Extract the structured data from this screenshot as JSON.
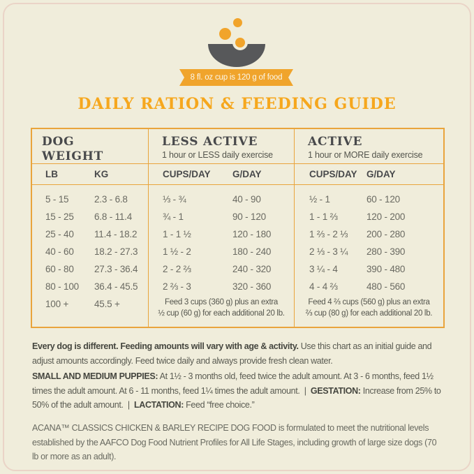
{
  "header": {
    "badge_text": "8 fl. oz cup is 120 g of food",
    "title": "DAILY RATION & FEEDING GUIDE"
  },
  "theme": {
    "background": "#f0eddb",
    "accent_orange": "#f6a71d",
    "table_border": "#e9a43c",
    "dark_text": "#48494b"
  },
  "table": {
    "weight": {
      "header_line1": "DOG",
      "header_line2": "WEIGHT",
      "col1": "LB",
      "col2": "KG",
      "rows": [
        {
          "lb": "5 - 15",
          "kg": "2.3 - 6.8"
        },
        {
          "lb": "15 - 25",
          "kg": "6.8 - 11.4"
        },
        {
          "lb": "25 - 40",
          "kg": "11.4 - 18.2"
        },
        {
          "lb": "40 - 60",
          "kg": "18.2 - 27.3"
        },
        {
          "lb": "60 - 80",
          "kg": "27.3 - 36.4"
        },
        {
          "lb": "80 - 100",
          "kg": "36.4 - 45.5"
        },
        {
          "lb": "100 +",
          "kg": "45.5 +"
        }
      ]
    },
    "less_active": {
      "header": "LESS ACTIVE",
      "subtitle": "1 hour or LESS daily exercise",
      "col1": "CUPS/DAY",
      "col2": "G/DAY",
      "rows": [
        {
          "cups": "⅓ - ¾",
          "g": "40 - 90"
        },
        {
          "cups": "¾ - 1",
          "g": "90 - 120"
        },
        {
          "cups": "1 - 1 ½",
          "g": "120 - 180"
        },
        {
          "cups": "1 ½ - 2",
          "g": "180 - 240"
        },
        {
          "cups": "2 - 2 ⅔",
          "g": "240 - 320"
        },
        {
          "cups": "2 ⅔ - 3",
          "g": "320 - 360"
        }
      ],
      "note_line1": "Feed 3 cups (360 g) plus an extra",
      "note_line2": "½ cup (60 g) for each additional 20 lb."
    },
    "active": {
      "header": "ACTIVE",
      "subtitle": "1 hour or MORE daily exercise",
      "col1": "CUPS/DAY",
      "col2": "G/DAY",
      "rows": [
        {
          "cups": "½ - 1",
          "g": "60 - 120"
        },
        {
          "cups": "1 - 1 ⅔",
          "g": "120 - 200"
        },
        {
          "cups": "1 ⅔ - 2 ⅓",
          "g": "200 - 280"
        },
        {
          "cups": "2 ⅓ - 3 ¼",
          "g": "280 - 390"
        },
        {
          "cups": "3 ¼ - 4",
          "g": "390 - 480"
        },
        {
          "cups": "4 - 4 ⅔",
          "g": "480 - 560"
        }
      ],
      "note_line1": "Feed 4 ⅔ cups (560 g) plus an extra",
      "note_line2": "⅔ cup (80 g) for each additional 20 lb."
    }
  },
  "footnotes": {
    "general_bold": "Every dog is different. Feeding amounts will vary with age & activity.",
    "general_rest": " Use this chart as an initial guide and adjust amounts accordingly. Feed twice daily and always provide fresh clean water.",
    "puppies_label": "SMALL AND MEDIUM PUPPIES:",
    "puppies_text": " At 1½ - 3 months old, feed twice the adult amount. At 3 - 6 months, feed 1½ times the adult amount. At 6 - 11 months, feed 1¼ times the adult amount.  |  ",
    "gestation_label": "GESTATION:",
    "gestation_text": " Increase from 25% to 50% of the adult amount.  |  ",
    "lactation_label": "LACTATION:",
    "lactation_text": " Feed “free choice.”",
    "aafco": "ACANA™ CLASSICS CHICKEN & BARLEY RECIPE DOG FOOD is formulated to meet the nutritional levels established by the AAFCO Dog Food Nutrient Profiles for All Life Stages, including growth of large size dogs (70 lb or more as an adult)."
  }
}
